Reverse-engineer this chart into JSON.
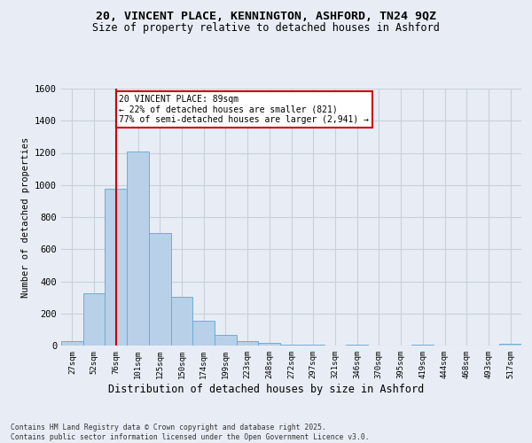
{
  "title_line1": "20, VINCENT PLACE, KENNINGTON, ASHFORD, TN24 9QZ",
  "title_line2": "Size of property relative to detached houses in Ashford",
  "xlabel": "Distribution of detached houses by size in Ashford",
  "ylabel": "Number of detached properties",
  "footer_line1": "Contains HM Land Registry data © Crown copyright and database right 2025.",
  "footer_line2": "Contains public sector information licensed under the Open Government Licence v3.0.",
  "categories": [
    "27sqm",
    "52sqm",
    "76sqm",
    "101sqm",
    "125sqm",
    "150sqm",
    "174sqm",
    "199sqm",
    "223sqm",
    "248sqm",
    "272sqm",
    "297sqm",
    "321sqm",
    "346sqm",
    "370sqm",
    "395sqm",
    "419sqm",
    "444sqm",
    "468sqm",
    "493sqm",
    "517sqm"
  ],
  "values": [
    25,
    325,
    975,
    1210,
    700,
    305,
    155,
    65,
    25,
    15,
    5,
    5,
    0,
    5,
    0,
    0,
    5,
    0,
    0,
    0,
    10
  ],
  "bar_color": "#b8d0e8",
  "bar_edge_color": "#6baed6",
  "grid_color": "#c8d0dc",
  "background_color": "#e8edf5",
  "annotation_box_text": "20 VINCENT PLACE: 89sqm\n← 22% of detached houses are smaller (821)\n77% of semi-detached houses are larger (2,941) →",
  "annotation_box_color": "#ffffff",
  "annotation_box_edge_color": "#cc0000",
  "vline_x_index": 2,
  "vline_color": "#cc0000",
  "ylim": [
    0,
    1600
  ],
  "yticks": [
    0,
    200,
    400,
    600,
    800,
    1000,
    1200,
    1400,
    1600
  ]
}
